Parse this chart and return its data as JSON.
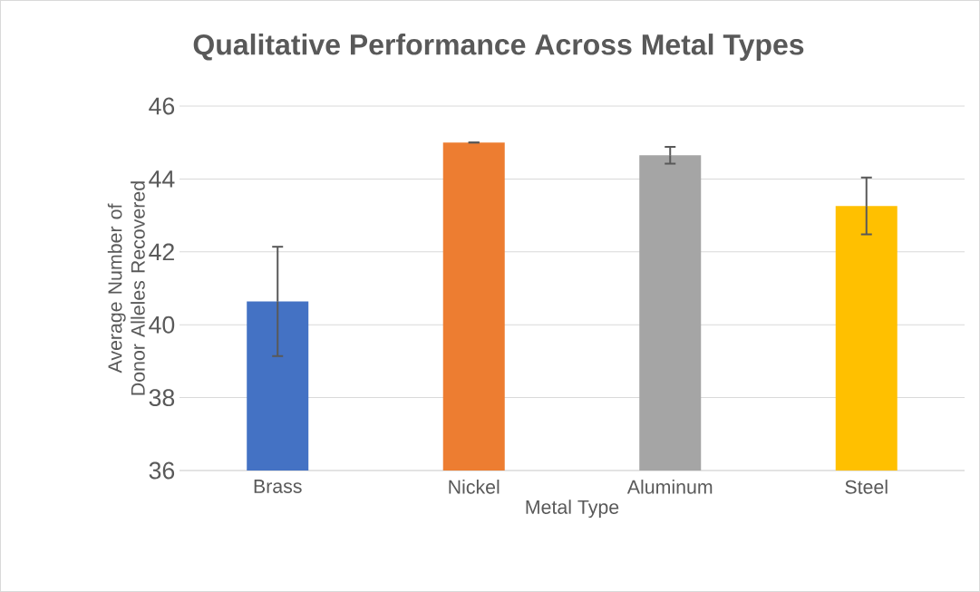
{
  "chart_data": {
    "type": "bar",
    "title": "Qualitative Performance Across Metal Types",
    "xlabel": "Metal Type",
    "ylabel": "Average Number of Donor Alleles Recovered",
    "categories": [
      "Brass",
      "Nickel",
      "Aluminum",
      "Steel"
    ],
    "values": [
      40.64,
      45.0,
      44.65,
      43.26
    ],
    "errors": [
      1.5,
      0.0,
      0.23,
      0.78
    ],
    "colors": [
      "#4472c4",
      "#ed7d31",
      "#a5a5a5",
      "#ffc000"
    ],
    "ylim": [
      36,
      46
    ],
    "yticks": [
      36,
      38,
      40,
      42,
      44,
      46
    ],
    "grid": "y"
  }
}
